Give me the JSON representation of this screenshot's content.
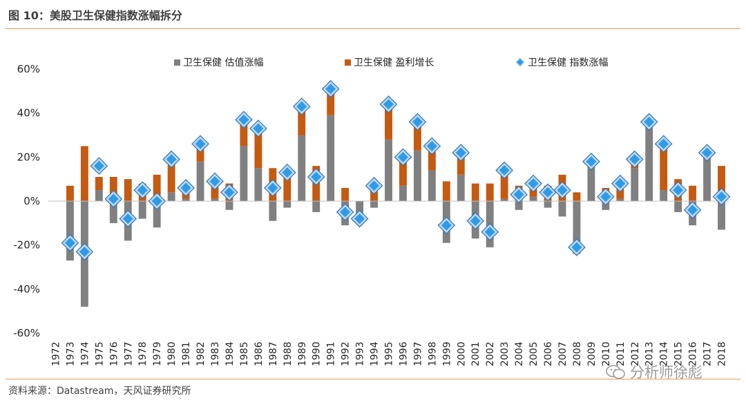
{
  "figure": {
    "title": "图 10：美股卫生保健指数涨幅拆分",
    "source": "资料来源：Datastream，天风证券研究所",
    "watermark": "分析师徐彪"
  },
  "chart_data": {
    "type": "bar",
    "stacked": true,
    "title": "",
    "xlabel": "",
    "ylabel": "",
    "ylim": [
      -0.6,
      0.6
    ],
    "yticks": [
      -0.6,
      -0.4,
      -0.2,
      0.0,
      0.2,
      0.4,
      0.6
    ],
    "ytick_labels": [
      "-60%",
      "-40%",
      "-20%",
      "0%",
      "20%",
      "40%",
      "60%"
    ],
    "grid": false,
    "legend_position": "top",
    "categories": [
      "1972",
      "1973",
      "1974",
      "1975",
      "1976",
      "1977",
      "1978",
      "1979",
      "1980",
      "1981",
      "1982",
      "1983",
      "1984",
      "1985",
      "1986",
      "1987",
      "1988",
      "1989",
      "1990",
      "1991",
      "1992",
      "1993",
      "1994",
      "1995",
      "1996",
      "1997",
      "1998",
      "1999",
      "2000",
      "2001",
      "2002",
      "2003",
      "2004",
      "2005",
      "2006",
      "2007",
      "2008",
      "2009",
      "2010",
      "2011",
      "2012",
      "2013",
      "2014",
      "2015",
      "2016",
      "2017",
      "2018"
    ],
    "series": [
      {
        "name": "卫生保健 估值涨幅",
        "kind": "bar",
        "color": "#808080",
        "values": [
          null,
          -0.27,
          -0.48,
          0.05,
          -0.1,
          -0.18,
          -0.08,
          -0.12,
          0.04,
          0.01,
          0.18,
          0.01,
          -0.04,
          0.25,
          0.15,
          -0.09,
          -0.03,
          0.3,
          -0.05,
          0.39,
          -0.11,
          -0.08,
          -0.03,
          0.28,
          0.07,
          0.23,
          0.14,
          -0.19,
          0.12,
          -0.17,
          -0.21,
          0.01,
          -0.04,
          0.02,
          -0.03,
          -0.07,
          -0.24,
          0.15,
          -0.04,
          0.01,
          0.15,
          0.34,
          0.05,
          -0.05,
          -0.11,
          0.19,
          -0.13
        ]
      },
      {
        "name": "卫生保健 盈利增长",
        "kind": "bar",
        "color": "#C55A11",
        "values": [
          null,
          0.07,
          0.25,
          0.06,
          0.11,
          0.1,
          0.08,
          0.12,
          0.15,
          0.05,
          0.08,
          0.07,
          0.08,
          0.12,
          0.18,
          0.15,
          0.15,
          0.13,
          0.16,
          0.12,
          0.06,
          0.0,
          0.09,
          0.16,
          0.13,
          0.13,
          0.11,
          0.09,
          0.1,
          0.08,
          0.08,
          0.13,
          0.07,
          0.06,
          0.07,
          0.12,
          0.04,
          0.03,
          0.06,
          0.07,
          0.04,
          0.02,
          0.21,
          0.1,
          0.07,
          0.03,
          0.16
        ]
      },
      {
        "name": "卫生保健 指数涨幅",
        "kind": "marker",
        "color": "#2E9BE8",
        "values": [
          null,
          -0.19,
          -0.23,
          0.16,
          0.01,
          -0.08,
          0.05,
          0.0,
          0.19,
          0.06,
          0.26,
          0.09,
          0.04,
          0.37,
          0.33,
          0.06,
          0.13,
          0.43,
          0.11,
          0.51,
          -0.05,
          -0.08,
          0.07,
          0.44,
          0.2,
          0.36,
          0.25,
          -0.11,
          0.22,
          -0.09,
          -0.14,
          0.14,
          0.03,
          0.08,
          0.04,
          0.05,
          -0.21,
          0.18,
          0.02,
          0.08,
          0.19,
          0.36,
          0.26,
          0.05,
          -0.04,
          0.22,
          0.02
        ]
      }
    ]
  }
}
